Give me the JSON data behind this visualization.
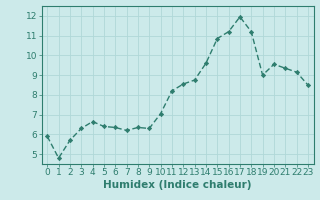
{
  "x": [
    0,
    1,
    2,
    3,
    4,
    5,
    6,
    7,
    8,
    9,
    10,
    11,
    12,
    13,
    14,
    15,
    16,
    17,
    18,
    19,
    20,
    21,
    22,
    23
  ],
  "y": [
    5.9,
    4.8,
    5.7,
    6.3,
    6.65,
    6.4,
    6.35,
    6.2,
    6.35,
    6.3,
    7.05,
    8.2,
    8.55,
    8.75,
    9.6,
    10.85,
    11.2,
    11.95,
    11.2,
    9.0,
    9.55,
    9.35,
    9.15,
    8.5
  ],
  "line_color": "#2e7d6e",
  "marker": "D",
  "marker_size": 2.2,
  "bg_color": "#cceaea",
  "grid_color": "#b0d8d8",
  "xlabel": "Humidex (Indice chaleur)",
  "ylim": [
    4.5,
    12.5
  ],
  "xlim": [
    -0.5,
    23.5
  ],
  "yticks": [
    5,
    6,
    7,
    8,
    9,
    10,
    11,
    12
  ],
  "xticks": [
    0,
    1,
    2,
    3,
    4,
    5,
    6,
    7,
    8,
    9,
    10,
    11,
    12,
    13,
    14,
    15,
    16,
    17,
    18,
    19,
    20,
    21,
    22,
    23
  ],
  "tick_color": "#2e7d6e",
  "label_color": "#2e7d6e",
  "xlabel_fontsize": 7.5,
  "tick_fontsize": 6.5,
  "spine_color": "#2e7d6e",
  "line_width": 1.0,
  "dash_pattern": [
    4,
    2
  ]
}
